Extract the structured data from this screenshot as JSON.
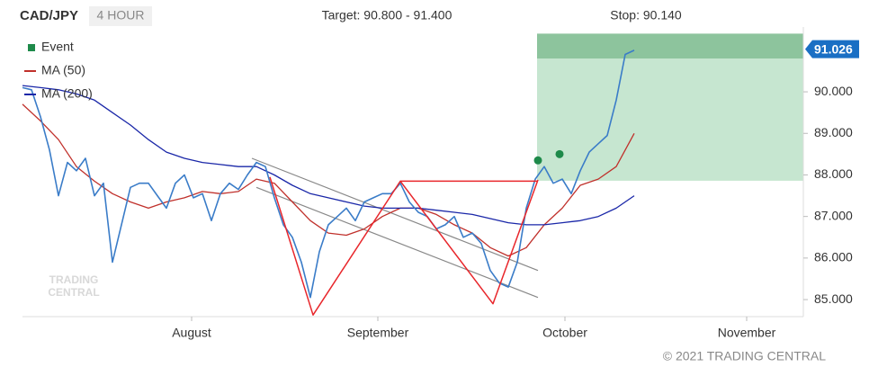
{
  "chart_data": {
    "type": "line",
    "title": "CAD/JPY",
    "timeframe": "4 HOUR",
    "target_text": "Target: 90.800 - 91.400",
    "stop_text": "Stop: 90.140",
    "footer": "© 2021 TRADING CENTRAL",
    "watermark": [
      "TRADING",
      "CENTRAL"
    ],
    "color": "#3a7cc8",
    "x": [
      0,
      1,
      2,
      3,
      4,
      5,
      6,
      7,
      8,
      9,
      10,
      11,
      12,
      13,
      14,
      15,
      16,
      17,
      18,
      19,
      20,
      21,
      22,
      23,
      24,
      25,
      26,
      27,
      28,
      29,
      30,
      31,
      32,
      33,
      34,
      35,
      36,
      37,
      38,
      39,
      40,
      41,
      42,
      43,
      44,
      45,
      46,
      47,
      48,
      49,
      50,
      51,
      52,
      53,
      54,
      55,
      56,
      57,
      58,
      59,
      60,
      61,
      62,
      63,
      64,
      65,
      66,
      67,
      68
    ],
    "values": [
      90.1,
      90.05,
      89.4,
      88.6,
      87.5,
      88.3,
      88.1,
      88.4,
      87.5,
      87.8,
      85.9,
      86.8,
      87.7,
      87.8,
      87.8,
      87.5,
      87.2,
      87.8,
      88.0,
      87.45,
      87.55,
      86.9,
      87.55,
      87.8,
      87.65,
      88.0,
      88.3,
      88.2,
      87.45,
      86.8,
      86.5,
      85.9,
      85.05,
      86.15,
      86.8,
      87.0,
      87.2,
      86.9,
      87.35,
      87.45,
      87.55,
      87.55,
      87.8,
      87.35,
      87.1,
      87.0,
      86.7,
      86.8,
      87.0,
      86.5,
      86.6,
      86.35,
      85.7,
      85.4,
      85.3,
      85.9,
      87.2,
      87.9,
      88.2,
      87.8,
      87.9,
      87.55,
      88.1,
      88.55,
      88.75,
      88.95,
      89.8,
      90.9,
      91.0
    ],
    "series": [
      {
        "name": "MA (50)",
        "color": "#c0302b",
        "x": [
          0,
          2,
          4,
          6,
          8,
          10,
          12,
          14,
          16,
          18,
          20,
          22,
          24,
          26,
          28,
          30,
          32,
          34,
          36,
          38,
          40,
          42,
          44,
          46,
          48,
          50,
          52,
          54,
          56,
          58,
          60,
          62,
          64,
          66,
          68
        ],
        "values": [
          89.7,
          89.3,
          88.85,
          88.2,
          87.85,
          87.55,
          87.35,
          87.2,
          87.35,
          87.45,
          87.6,
          87.55,
          87.6,
          87.9,
          87.8,
          87.35,
          86.9,
          86.6,
          86.55,
          86.7,
          87.0,
          87.2,
          87.2,
          87.05,
          86.8,
          86.6,
          86.25,
          86.05,
          86.25,
          86.8,
          87.2,
          87.75,
          87.9,
          88.2,
          89.0
        ]
      },
      {
        "name": "MA (200)",
        "color": "#1a27a8",
        "x": [
          0,
          2,
          4,
          6,
          8,
          10,
          12,
          14,
          16,
          18,
          20,
          22,
          24,
          26,
          28,
          30,
          32,
          34,
          36,
          38,
          40,
          42,
          44,
          46,
          48,
          50,
          52,
          54,
          56,
          58,
          60,
          62,
          64,
          66,
          68
        ],
        "values": [
          90.15,
          90.1,
          90.05,
          89.95,
          89.8,
          89.5,
          89.2,
          88.85,
          88.55,
          88.4,
          88.3,
          88.25,
          88.2,
          88.2,
          88.0,
          87.75,
          87.55,
          87.45,
          87.35,
          87.25,
          87.2,
          87.2,
          87.2,
          87.15,
          87.1,
          87.05,
          86.95,
          86.85,
          86.8,
          86.8,
          86.85,
          86.9,
          87.0,
          87.2,
          87.5
        ]
      }
    ],
    "events": {
      "name": "Event",
      "color": "#1e8a4a",
      "x": [
        57.3,
        59.7
      ],
      "values": [
        88.35,
        88.5
      ]
    },
    "target_zone": {
      "x": 57.2,
      "values": [
        90.8,
        91.4
      ],
      "color": "#8dc49d"
    },
    "zone": {
      "x": 57.2,
      "values": [
        87.86,
        90.8
      ],
      "color": "#c6e6d0"
    },
    "channel": [
      {
        "x": [
          25.5,
          57.3
        ],
        "values": [
          88.4,
          85.7
        ]
      },
      {
        "x": [
          26,
          57.3
        ],
        "values": [
          87.7,
          85.05
        ]
      }
    ],
    "pattern": [
      {
        "x": [
          27.5,
          32.3,
          42,
          52.3,
          57.3
        ],
        "values": [
          87.95,
          84.63,
          87.85,
          84.9,
          87.88
        ]
      },
      {
        "x": [
          42,
          57.3
        ],
        "values": [
          87.85,
          87.85
        ]
      }
    ],
    "last_price": {
      "value": 91.026,
      "label": "91.026"
    },
    "xlim": [
      0,
      86.8
    ],
    "ylim": [
      84.59,
      91.56
    ],
    "xticks": [
      {
        "value": 18.8,
        "label": "August"
      },
      {
        "value": 39.5,
        "label": "September"
      },
      {
        "value": 60.3,
        "label": "October"
      },
      {
        "value": 80.5,
        "label": "November"
      }
    ],
    "yticks": [
      {
        "value": 85,
        "label": "85.000"
      },
      {
        "value": 86,
        "label": "86.000"
      },
      {
        "value": 87,
        "label": "87.000"
      },
      {
        "value": 88,
        "label": "88.000"
      },
      {
        "value": 89,
        "label": "89.000"
      },
      {
        "value": 90,
        "label": "90.000"
      }
    ]
  }
}
